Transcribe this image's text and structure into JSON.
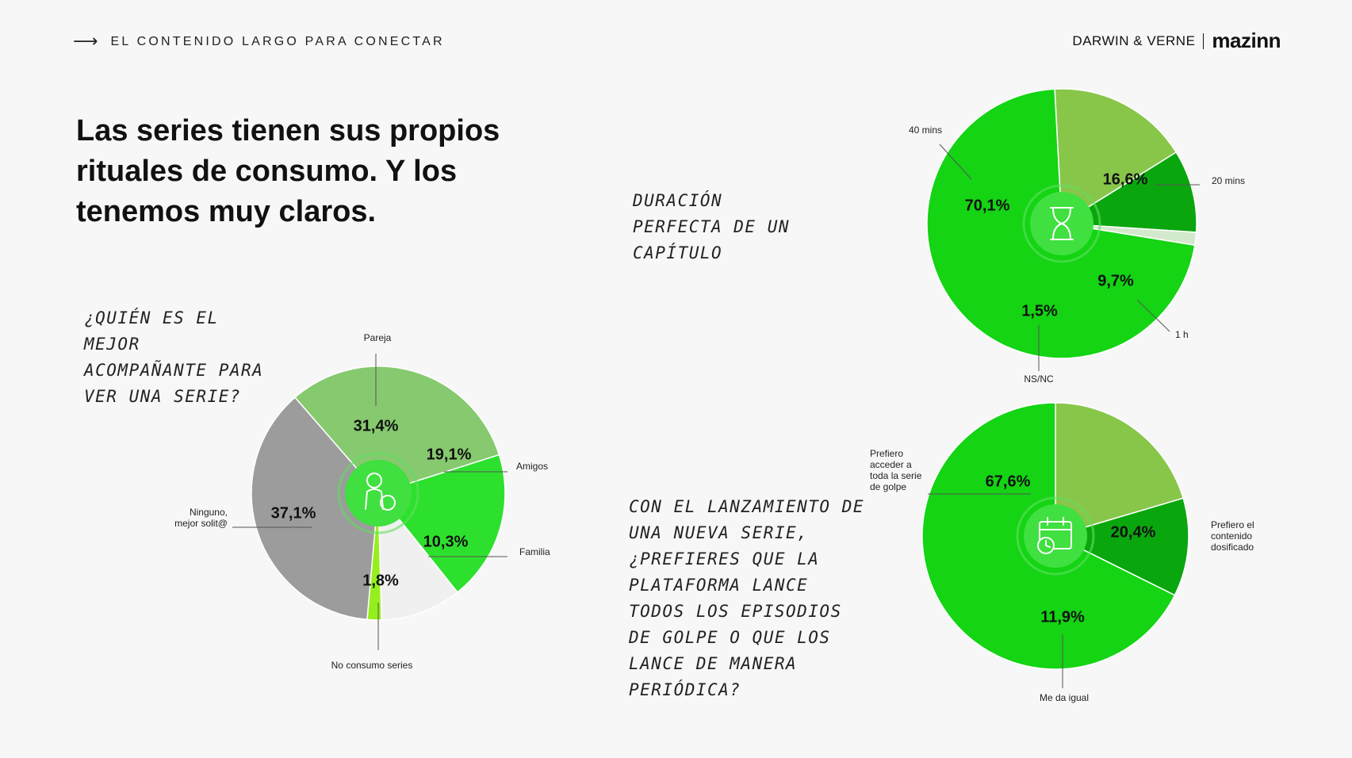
{
  "header": {
    "kicker": "EL CONTENIDO LARGO PARA CONECTAR",
    "brand_dv": "DARWIN & VERNE",
    "brand_mz": "mazinn"
  },
  "headline": "Las series tienen sus propios rituales de consumo. Y los tenemos muy claros.",
  "questions": {
    "companion": "¿Quién es el mejor acompañante para ver una serie?",
    "duration": "Duración perfecta de un capítulo",
    "release": "Con el lanzamiento de una nueva serie, ¿prefieres que la plataforma lance todos los episodios de golpe o que los lance de manera periódica?"
  },
  "icons": {
    "companion": "person-with-popcorn-icon",
    "duration": "hourglass-icon",
    "release": "calendar-clock-icon"
  },
  "chart_data": [
    {
      "type": "pie",
      "slices": [
        {
          "label": "Pareja",
          "value": 31.4,
          "display": "31,4%",
          "color": "#86c96f"
        },
        {
          "label": "Amigos",
          "value": 19.1,
          "display": "19,1%",
          "color": "#2ee02e"
        },
        {
          "label": "Familia",
          "value": 10.3,
          "display": "10,3%",
          "color": "#f0f0f0"
        },
        {
          "label": "No consumo series",
          "value": 1.8,
          "display": "1,8%",
          "color": "#95ef1d"
        },
        {
          "label": "Ninguno, mejor solit@",
          "value": 37.1,
          "display": "37,1%",
          "color": "#9c9c9c"
        }
      ]
    },
    {
      "type": "pie",
      "slices": [
        {
          "label": "20 mins",
          "value": 16.6,
          "display": "16,6%",
          "color": "#88c64a"
        },
        {
          "label": "1 h",
          "value": 9.7,
          "display": "9,7%",
          "color": "#0aa60e"
        },
        {
          "label": "NS/NC",
          "value": 1.5,
          "display": "1,5%",
          "color": "#d2e9cb"
        },
        {
          "label": "40 mins",
          "value": 70.1,
          "display": "70,1%",
          "color": "#14d414"
        }
      ]
    },
    {
      "type": "pie",
      "slices": [
        {
          "label": "Prefiero el contenido dosificado",
          "value": 20.4,
          "display": "20,4%",
          "color": "#88c64a"
        },
        {
          "label": "Me da igual",
          "value": 11.9,
          "display": "11,9%",
          "color": "#0aa60e"
        },
        {
          "label": "Prefiero acceder a toda la serie de golpe",
          "value": 67.6,
          "display": "67,6%",
          "color": "#14d414"
        }
      ]
    }
  ]
}
